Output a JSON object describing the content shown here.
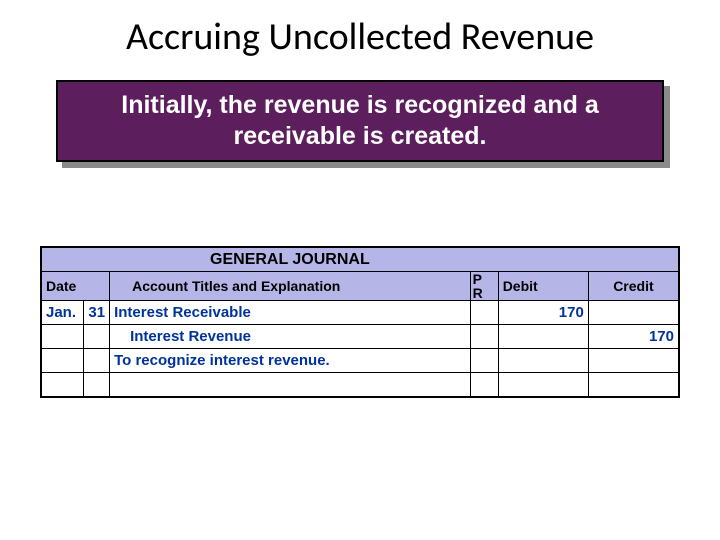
{
  "title": "Accruing Uncollected Revenue",
  "callout": {
    "text": "Initially, the revenue is recognized and a receivable is created.",
    "background": "#5d1e5e",
    "text_color": "#ffffff",
    "border_color": "#000000",
    "shadow_color": "#8a8a8a",
    "font_size": 25,
    "font_weight": "bold"
  },
  "journal": {
    "title": "GENERAL JOURNAL",
    "header_bg": "#b5b5e8",
    "columns": {
      "date": "Date",
      "account": "Account Titles and Explanation",
      "pr_line1": "P",
      "pr_line2": "R",
      "debit": "Debit",
      "credit": "Credit"
    },
    "entry_color": "#003399",
    "rows": [
      {
        "date_month": "Jan.",
        "date_day": "31",
        "account": "Interest Receivable",
        "account_indent": 0,
        "pr": "",
        "debit": "170",
        "credit": ""
      },
      {
        "date_month": "",
        "date_day": "",
        "account": "Interest Revenue",
        "account_indent": 1,
        "pr": "",
        "debit": "",
        "credit": "170"
      },
      {
        "date_month": "",
        "date_day": "",
        "account": "To recognize interest revenue.",
        "account_indent": 0,
        "pr": "",
        "debit": "",
        "credit": ""
      },
      {
        "date_month": "",
        "date_day": "",
        "account": "",
        "account_indent": 0,
        "pr": "",
        "debit": "",
        "credit": ""
      }
    ]
  }
}
